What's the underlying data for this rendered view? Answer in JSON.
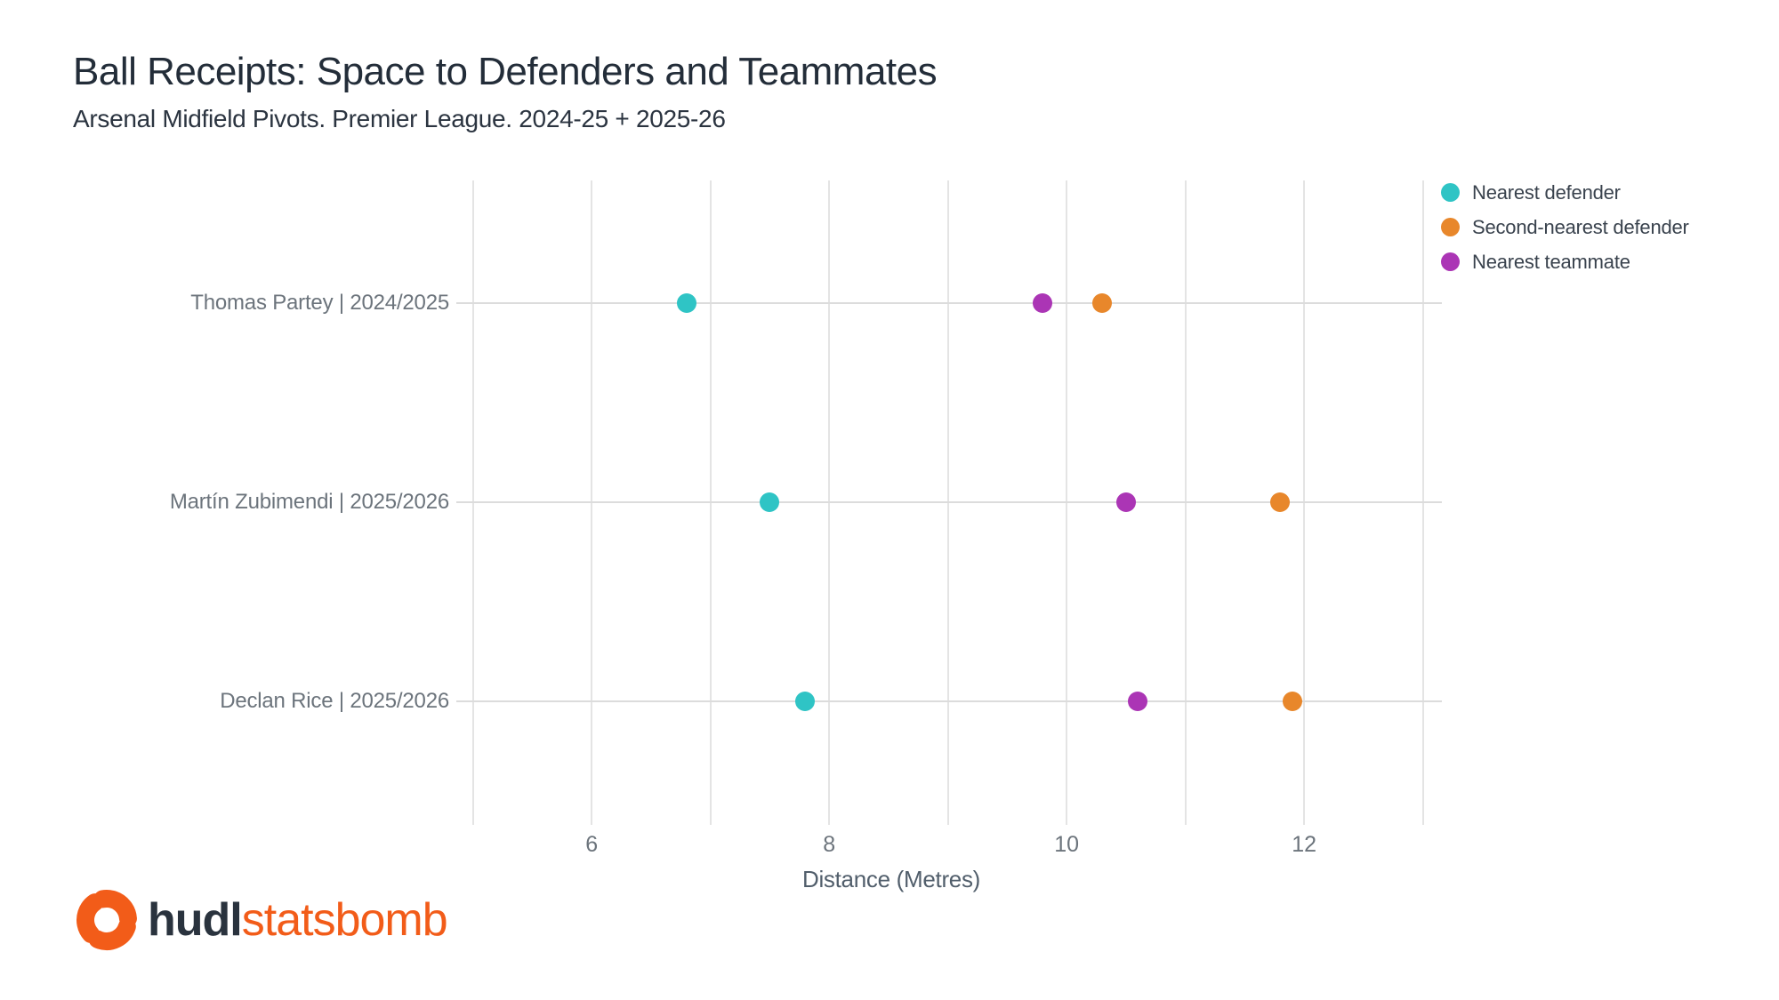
{
  "title": "Ball Receipts: Space to Defenders and Teammates",
  "subtitle": "Arsenal Midfield Pivots. Premier League. 2024-25 + 2025-26",
  "colors": {
    "nearest_defender": "#2fc4c5",
    "second_nearest_defender": "#e8872b",
    "nearest_teammate": "#ab35b5",
    "vertical_grid": "#e4e4e4",
    "horizontal_grid": "#dcdcdc",
    "title_text": "#232d39",
    "axis_tick_text": "#6c747c",
    "axis_label_text": "#515e6b",
    "legend_text": "#39424d",
    "logo_orange": "#f25c19",
    "logo_dark": "#2a333e"
  },
  "legend": {
    "position": "top-right",
    "items": [
      {
        "label": "Nearest defender",
        "color_key": "nearest_defender"
      },
      {
        "label": "Second-nearest defender",
        "color_key": "second_nearest_defender"
      },
      {
        "label": "Nearest teammate",
        "color_key": "nearest_teammate"
      }
    ]
  },
  "chart_data": {
    "type": "scatter",
    "variant": "horizontal-dot-plot",
    "title": "Ball Receipts: Space to Defenders and Teammates",
    "subtitle": "Arsenal Midfield Pivots. Premier League. 2024-25 + 2025-26",
    "categories": [
      "Thomas Partey | 2024/2025",
      "Martín Zubimendi | 2025/2026",
      "Declan Rice | 2025/2026"
    ],
    "series": [
      {
        "name": "Nearest defender",
        "color_key": "nearest_defender",
        "values": [
          6.8,
          7.5,
          7.8
        ]
      },
      {
        "name": "Second-nearest defender",
        "color_key": "second_nearest_defender",
        "values": [
          10.3,
          11.8,
          11.9
        ]
      },
      {
        "name": "Nearest teammate",
        "color_key": "nearest_teammate",
        "values": [
          9.8,
          10.5,
          10.6
        ]
      }
    ],
    "xlabel": "Distance (Metres)",
    "ylabel": "",
    "x_ticks": [
      6,
      8,
      10,
      12
    ],
    "x_gridlines": [
      5,
      6,
      7,
      8,
      9,
      10,
      11,
      12,
      13
    ],
    "xlim": [
      4.86,
      13.16
    ],
    "grid": true,
    "legend_position": "top-right"
  },
  "footer": {
    "logo_hudl": "hudl",
    "logo_statsbomb": "statsbomb"
  }
}
